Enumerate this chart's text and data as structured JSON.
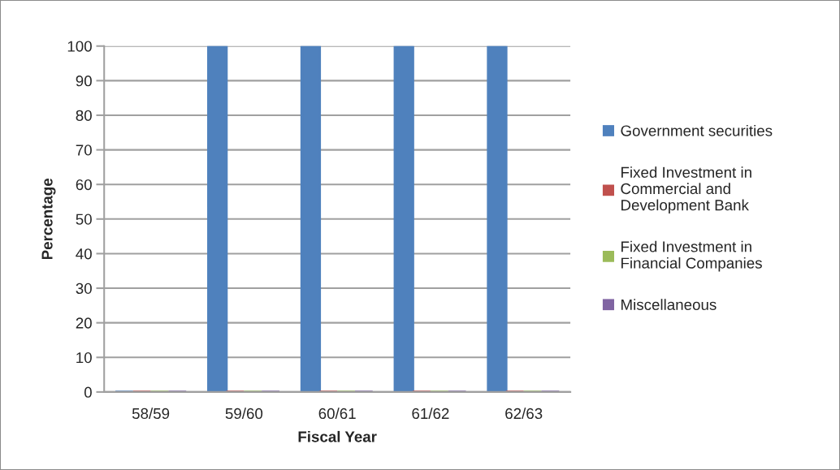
{
  "chart_data": {
    "type": "bar",
    "xlabel": "Fiscal Year",
    "ylabel": "Percentage",
    "categories": [
      "58/59",
      "59/60",
      "60/61",
      "61/62",
      "62/63"
    ],
    "series": [
      {
        "name": "Government securities",
        "color": "#4f81bd",
        "values": [
          0,
          100,
          100,
          100,
          100
        ]
      },
      {
        "name": "Fixed Investment in Commercial and Development Bank",
        "color": "#c0504d",
        "values": [
          0,
          0,
          0,
          0,
          0
        ]
      },
      {
        "name": "Fixed Investment in Financial Companies",
        "color": "#9bbb59",
        "values": [
          0,
          0,
          0,
          0,
          0
        ]
      },
      {
        "name": "Miscellaneous",
        "color": "#8064a2",
        "values": [
          0,
          0,
          0,
          0,
          0
        ]
      }
    ],
    "ylim": [
      0,
      100
    ],
    "yticks": [
      0,
      10,
      20,
      30,
      40,
      50,
      60,
      70,
      80,
      90,
      100
    ],
    "grid": "y",
    "legend": "right"
  }
}
